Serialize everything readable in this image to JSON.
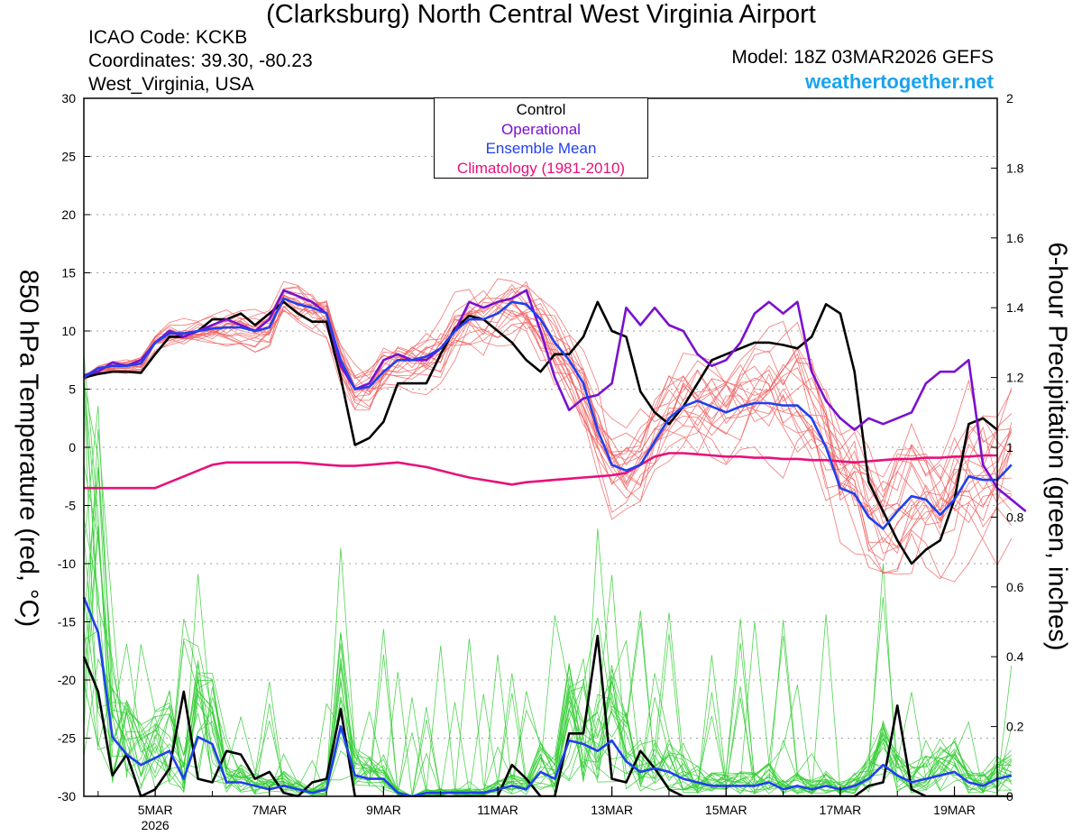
{
  "header": {
    "title": "(Clarksburg) North Central West Virginia Airport",
    "icao": "ICAO Code: KCKB",
    "coords": "Coordinates: 39.30, -80.23",
    "region": "West_Virginia, USA",
    "model": "Model: 18Z 03MAR2026 GEFS",
    "brand": "weathertogether.net"
  },
  "legend": {
    "control": "Control",
    "operational": "Operational",
    "mean": "Ensemble Mean",
    "climo": "Climatology (1981-2010)"
  },
  "colors": {
    "control": "#000000",
    "operational": "#7a10d0",
    "mean": "#2040ee",
    "climo": "#e8107a",
    "members_temp": "#f06060",
    "members_precip": "#33cc33",
    "brand": "#1aa3ee"
  },
  "chart_data": {
    "type": "line",
    "title": "(Clarksburg) North Central West Virginia Airport",
    "ylabel": "850 hPa Temperature (red, °C)",
    "y2label": "6-hour Precipitation (green, inches)",
    "x_start": 3.75,
    "x_end": 19.75,
    "x_step_days": 0.25,
    "ylim": [
      -30,
      30
    ],
    "y2lim": [
      0,
      2
    ],
    "grid": "horizontal dotted",
    "yticks": [
      "30",
      "25",
      "20",
      "15",
      "10",
      "5",
      "0",
      "-5",
      "-10",
      "-15",
      "-20",
      "-25",
      "-30"
    ],
    "y2ticks": [
      "2",
      "1.8",
      "1.6",
      "1.4",
      "1.2",
      "1",
      "0.8",
      "0.6",
      "0.4",
      "0.2",
      "0"
    ],
    "xticks": [
      {
        "day": 5,
        "label": "5MAR",
        "sub": "2026"
      },
      {
        "day": 7,
        "label": "7MAR",
        "sub": ""
      },
      {
        "day": 9,
        "label": "9MAR",
        "sub": ""
      },
      {
        "day": 11,
        "label": "11MAR",
        "sub": ""
      },
      {
        "day": 13,
        "label": "13MAR",
        "sub": ""
      },
      {
        "day": 15,
        "label": "15MAR",
        "sub": ""
      },
      {
        "day": 17,
        "label": "17MAR",
        "sub": ""
      },
      {
        "day": 19,
        "label": "19MAR",
        "sub": ""
      }
    ],
    "series": [
      {
        "name": "Control",
        "axis": "temp",
        "values": [
          6,
          6.3,
          6.5,
          6.5,
          6.4,
          8,
          9.5,
          9.5,
          10,
          11,
          11,
          11.5,
          10.5,
          11.5,
          12.5,
          11.5,
          10.8,
          10.8,
          6,
          0.2,
          0.8,
          2.2,
          5.5,
          5.5,
          5.5,
          8,
          10.2,
          11.3,
          11,
          10,
          9,
          7.5,
          6.5,
          8,
          8,
          9.5,
          12.5,
          10,
          9.5,
          4.8,
          3,
          2,
          3.5,
          5.5,
          7.5,
          8,
          8.5,
          9,
          9,
          8.8,
          8.5,
          9.5,
          12.3,
          11.5,
          6.5,
          -3,
          -5.5,
          -8,
          -10,
          -8.8,
          -8,
          -4.5,
          2,
          2.5,
          1.5
        ]
      },
      {
        "name": "Operational",
        "axis": "temp",
        "values": [
          6.2,
          6.5,
          7.3,
          7,
          7.5,
          9,
          10,
          9.5,
          10,
          10.5,
          11,
          10.5,
          10,
          11,
          13.5,
          13,
          12.5,
          11.5,
          7,
          5,
          5.5,
          7.5,
          8,
          7.5,
          7.5,
          8.5,
          10,
          12.5,
          12,
          12.5,
          12.8,
          13.5,
          10,
          6,
          3.2,
          4.2,
          4.5,
          5.5,
          12,
          10.5,
          12,
          10.5,
          10,
          8,
          7,
          7.5,
          9,
          11.5,
          12.5,
          11.5,
          12.5,
          6.5,
          4,
          2.5,
          1.5,
          2.5,
          2,
          2.5,
          3,
          5.5,
          6.5,
          6.5,
          7.5,
          -1.5,
          -3.5,
          -4.5,
          -5.5
        ]
      },
      {
        "name": "Ensemble Mean",
        "axis": "temp",
        "values": [
          6,
          6.8,
          7,
          7,
          7.2,
          9,
          9.8,
          9.8,
          10,
          10.2,
          10.3,
          10.3,
          10,
          10.3,
          12.8,
          12.3,
          12,
          11.5,
          7.5,
          5,
          5.2,
          6.5,
          7.5,
          7.5,
          7.8,
          8.5,
          10,
          11,
          11,
          11.5,
          12.5,
          12.3,
          11,
          9,
          7.5,
          5.5,
          1.5,
          -1.5,
          -2,
          -1.5,
          0.5,
          2.5,
          3.5,
          4,
          3.5,
          3,
          3.5,
          3.8,
          3.8,
          3.6,
          3.6,
          2.5,
          0,
          -3.5,
          -4,
          -6,
          -7,
          -5.5,
          -4.2,
          -4.5,
          -5.8,
          -4.5,
          -2.5,
          -2.8,
          -2.8,
          -1.5
        ]
      },
      {
        "name": "Climatology (1981-2010)",
        "axis": "temp",
        "values": [
          -3.5,
          -3.5,
          -3.5,
          -3.5,
          -3.5,
          -3.5,
          -3,
          -2.5,
          -2,
          -1.5,
          -1.3,
          -1.3,
          -1.3,
          -1.3,
          -1.3,
          -1.3,
          -1.4,
          -1.5,
          -1.6,
          -1.6,
          -1.5,
          -1.4,
          -1.3,
          -1.5,
          -1.7,
          -2,
          -2.3,
          -2.6,
          -2.8,
          -3,
          -3.2,
          -3,
          -2.9,
          -2.8,
          -2.7,
          -2.6,
          -2.5,
          -2.4,
          -2.2,
          -1.5,
          -0.8,
          -0.5,
          -0.5,
          -0.6,
          -0.7,
          -0.8,
          -0.8,
          -0.9,
          -0.9,
          -1,
          -1,
          -1.1,
          -1.1,
          -1.2,
          -1.3,
          -1.2,
          -1.1,
          -1,
          -1,
          -0.9,
          -0.9,
          -0.8,
          -0.8,
          -0.7,
          -0.7
        ]
      },
      {
        "name": "Control 6-hr precip",
        "axis": "precip",
        "values": [
          0.4,
          0.3,
          0.06,
          0.12,
          0,
          0.02,
          0.08,
          0.3,
          0.05,
          0.04,
          0.13,
          0.12,
          0.05,
          0.07,
          0.01,
          0,
          0.04,
          0.05,
          0.25,
          0,
          0,
          0,
          0,
          0,
          0,
          0,
          0,
          0,
          0,
          0,
          0.09,
          0.05,
          0,
          0,
          0.18,
          0.18,
          0.46,
          0.05,
          0.04,
          0.13,
          0.08,
          0.02,
          0,
          0,
          0,
          0,
          0,
          0,
          0,
          0,
          0,
          0,
          0,
          0,
          0,
          0.03,
          0.04,
          0.26,
          0.02,
          0,
          0,
          0,
          0,
          0,
          0,
          0
        ]
      },
      {
        "name": "Ensemble Mean 6-hr precip",
        "axis": "precip",
        "values": [
          0.57,
          0.47,
          0.17,
          0.12,
          0.09,
          0.11,
          0.13,
          0.05,
          0.17,
          0.15,
          0.04,
          0.04,
          0.03,
          0.02,
          0.03,
          0.02,
          0.01,
          0.02,
          0.2,
          0.06,
          0.05,
          0.05,
          0.01,
          0,
          0.01,
          0.01,
          0.01,
          0.01,
          0.01,
          0.02,
          0.03,
          0.02,
          0.07,
          0.05,
          0.16,
          0.15,
          0.13,
          0.16,
          0.1,
          0.07,
          0.08,
          0.07,
          0.05,
          0.04,
          0.03,
          0.03,
          0.03,
          0.03,
          0.04,
          0.02,
          0.03,
          0.02,
          0.03,
          0.02,
          0.03,
          0.05,
          0.09,
          0.06,
          0.04,
          0.05,
          0.06,
          0.07,
          0.04,
          0.03,
          0.05,
          0.06
        ]
      }
    ]
  }
}
